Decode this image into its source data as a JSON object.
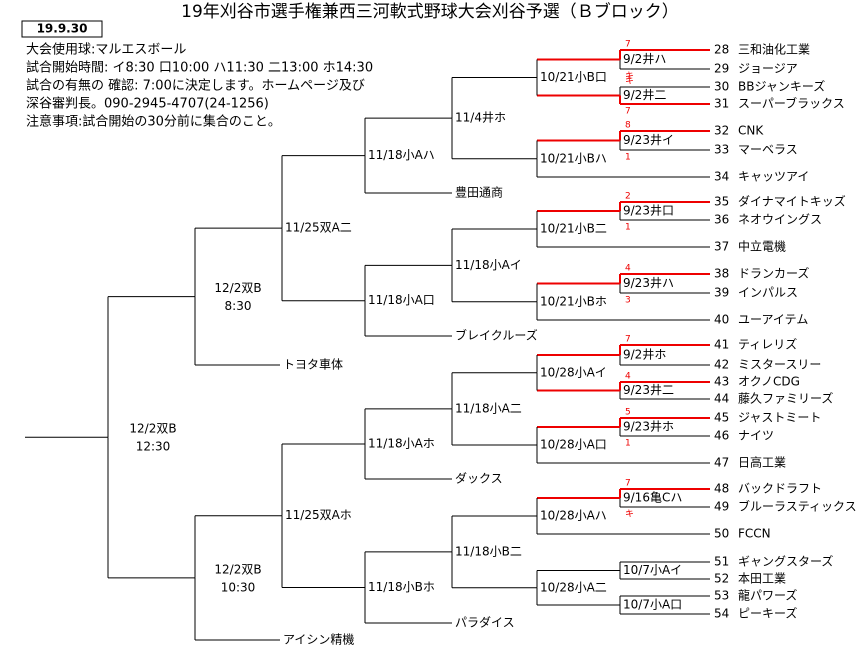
{
  "title": "19年刈谷市選手権兼西三河軟式野球大会刈谷予選（Ｂブロック）",
  "date": "19.9.30",
  "info": [
    "大会使用球:マルエスボール",
    "試合開始時間: イ8:30 口10:00 ハ11:30 二13:00 ホ14:30",
    "試合の有無の 確認: 7:00に決定します。ホームページ及び",
    "深谷審判長。090-2945-4707(24-1256)",
    "注意事項:試合開始の30分前に集合のこと。"
  ],
  "teams": [
    {
      "no": "28",
      "name": "三和油化工業"
    },
    {
      "no": "29",
      "name": "ジョージア"
    },
    {
      "no": "30",
      "name": "BBジャンキーズ"
    },
    {
      "no": "31",
      "name": "スーパーブラックス"
    },
    {
      "no": "32",
      "name": "CNK"
    },
    {
      "no": "33",
      "name": "マーベラス"
    },
    {
      "no": "34",
      "name": "キャッツアイ"
    },
    {
      "no": "35",
      "name": "ダイナマイトキッズ"
    },
    {
      "no": "36",
      "name": "ネオウイングス"
    },
    {
      "no": "37",
      "name": "中立電機"
    },
    {
      "no": "38",
      "name": "ドランカーズ"
    },
    {
      "no": "39",
      "name": "インパルス"
    },
    {
      "no": "40",
      "name": "ユーアイテム"
    },
    {
      "no": "41",
      "name": "ティレリズ"
    },
    {
      "no": "42",
      "name": "ミスタースリー"
    },
    {
      "no": "43",
      "name": "オクノCDG"
    },
    {
      "no": "44",
      "name": "藤久ファミリーズ"
    },
    {
      "no": "45",
      "name": "ジャストミート"
    },
    {
      "no": "46",
      "name": "ナイツ"
    },
    {
      "no": "47",
      "name": "日高工業"
    },
    {
      "no": "48",
      "name": "バックドラフト"
    },
    {
      "no": "49",
      "name": "ブルーラスティックス"
    },
    {
      "no": "50",
      "name": "FCCN"
    },
    {
      "no": "51",
      "name": "ギャングスターズ"
    },
    {
      "no": "52",
      "name": "本田工業"
    },
    {
      "no": "53",
      "name": "龍パワーズ"
    },
    {
      "no": "54",
      "name": "ピーキーズ"
    }
  ],
  "seeds": [
    "豊田通商",
    "ブレイクルーズ",
    "トヨタ車体",
    "ダックス",
    "パラダイス",
    "アイシン精機"
  ],
  "matches": [
    {
      "label": "9/2井ハ",
      "top": "7",
      "bottom": "キ",
      "winner": "top"
    },
    {
      "label": "9/2井二",
      "top": "キ",
      "bottom": "7",
      "winner": "bottom"
    },
    {
      "label": "10/21小B口"
    },
    {
      "label": "9/23井イ",
      "top": "8",
      "bottom": "1",
      "winner": "top"
    },
    {
      "label": "10/21小Bハ"
    },
    {
      "label": "11/4井ホ"
    },
    {
      "label": "11/18小Aハ"
    },
    {
      "label": "9/23井口",
      "top": "2",
      "bottom": "1",
      "winner": "top"
    },
    {
      "label": "10/21小B二"
    },
    {
      "label": "9/23井ハ",
      "top": "4",
      "bottom": "3",
      "winner": "top"
    },
    {
      "label": "10/21小Bホ"
    },
    {
      "label": "11/18小Aイ"
    },
    {
      "label": "11/18小A口"
    },
    {
      "label": "11/25双A二"
    },
    {
      "label": "12/2双B",
      "time": "8:30"
    },
    {
      "label": "9/2井ホ",
      "top": "7",
      "winner": "top"
    },
    {
      "label": "9/23井二",
      "top": "4",
      "winner": "top"
    },
    {
      "label": "10/28小Aイ"
    },
    {
      "label": "9/23井ホ",
      "top": "5",
      "bottom": "1",
      "winner": "top"
    },
    {
      "label": "10/28小A口"
    },
    {
      "label": "11/18小A二"
    },
    {
      "label": "11/18小Aホ"
    },
    {
      "label": "9/16亀Cハ",
      "top": "7",
      "bottom": "キ",
      "winner": "top"
    },
    {
      "label": "10/28小Aハ"
    },
    {
      "label": "10/7小Aイ"
    },
    {
      "label": "10/7小A口"
    },
    {
      "label": "10/28小A二"
    },
    {
      "label": "11/18小B二"
    },
    {
      "label": "11/18小Bホ"
    },
    {
      "label": "11/25双Aホ"
    },
    {
      "label": "12/2双B",
      "time": "10:30"
    },
    {
      "label": "12/2双B",
      "time": "12:30"
    }
  ]
}
